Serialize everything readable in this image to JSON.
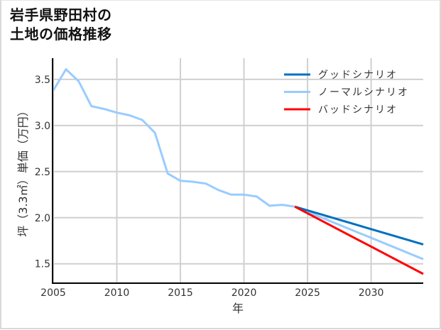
{
  "title_lines": [
    "岩手県野田村の",
    "土地の価格推移"
  ],
  "chart_data": {
    "type": "line",
    "title": "岩手県野田村の土地の価格推移",
    "xlabel": "年",
    "ylabel": "坪（3.3㎡）単価（万円）",
    "xlim": [
      2005,
      2034.1
    ],
    "ylim": [
      1.29,
      3.73
    ],
    "xticks": [
      2005,
      2010,
      2015,
      2020,
      2025,
      2030
    ],
    "yticks": [
      1.5,
      2.0,
      2.5,
      3.0,
      3.5
    ],
    "ytick_labels": [
      "1.5",
      "2.0",
      "2.5",
      "3.0",
      "3.5"
    ],
    "grid": true,
    "legend_position": "upper right",
    "series": [
      {
        "name": "ノーマルシナリオ",
        "role": "history",
        "color": "#99ccff",
        "x": [
          2005,
          2006,
          2007,
          2008,
          2009,
          2010,
          2011,
          2012,
          2013,
          2014,
          2015,
          2016,
          2017,
          2018,
          2019,
          2020,
          2021,
          2022,
          2023,
          2024
        ],
        "values": [
          3.38,
          3.61,
          3.48,
          3.21,
          3.18,
          3.14,
          3.11,
          3.06,
          2.92,
          2.48,
          2.4,
          2.39,
          2.37,
          2.3,
          2.25,
          2.25,
          2.23,
          2.13,
          2.14,
          2.12
        ]
      },
      {
        "name": "グッドシナリオ",
        "color": "#0070c0",
        "x": [
          2024,
          2034.1
        ],
        "values": [
          2.12,
          1.71
        ]
      },
      {
        "name": "ノーマルシナリオ",
        "color": "#99ccff",
        "x": [
          2024,
          2034.1
        ],
        "values": [
          2.12,
          1.55
        ]
      },
      {
        "name": "バッドシナリオ",
        "color": "#ff0000",
        "x": [
          2024,
          2034.1
        ],
        "values": [
          2.12,
          1.39
        ]
      }
    ],
    "legend": [
      {
        "label": "グッドシナリオ",
        "color": "#0070c0"
      },
      {
        "label": "ノーマルシナリオ",
        "color": "#99ccff"
      },
      {
        "label": "バッドシナリオ",
        "color": "#ff0000"
      }
    ]
  }
}
